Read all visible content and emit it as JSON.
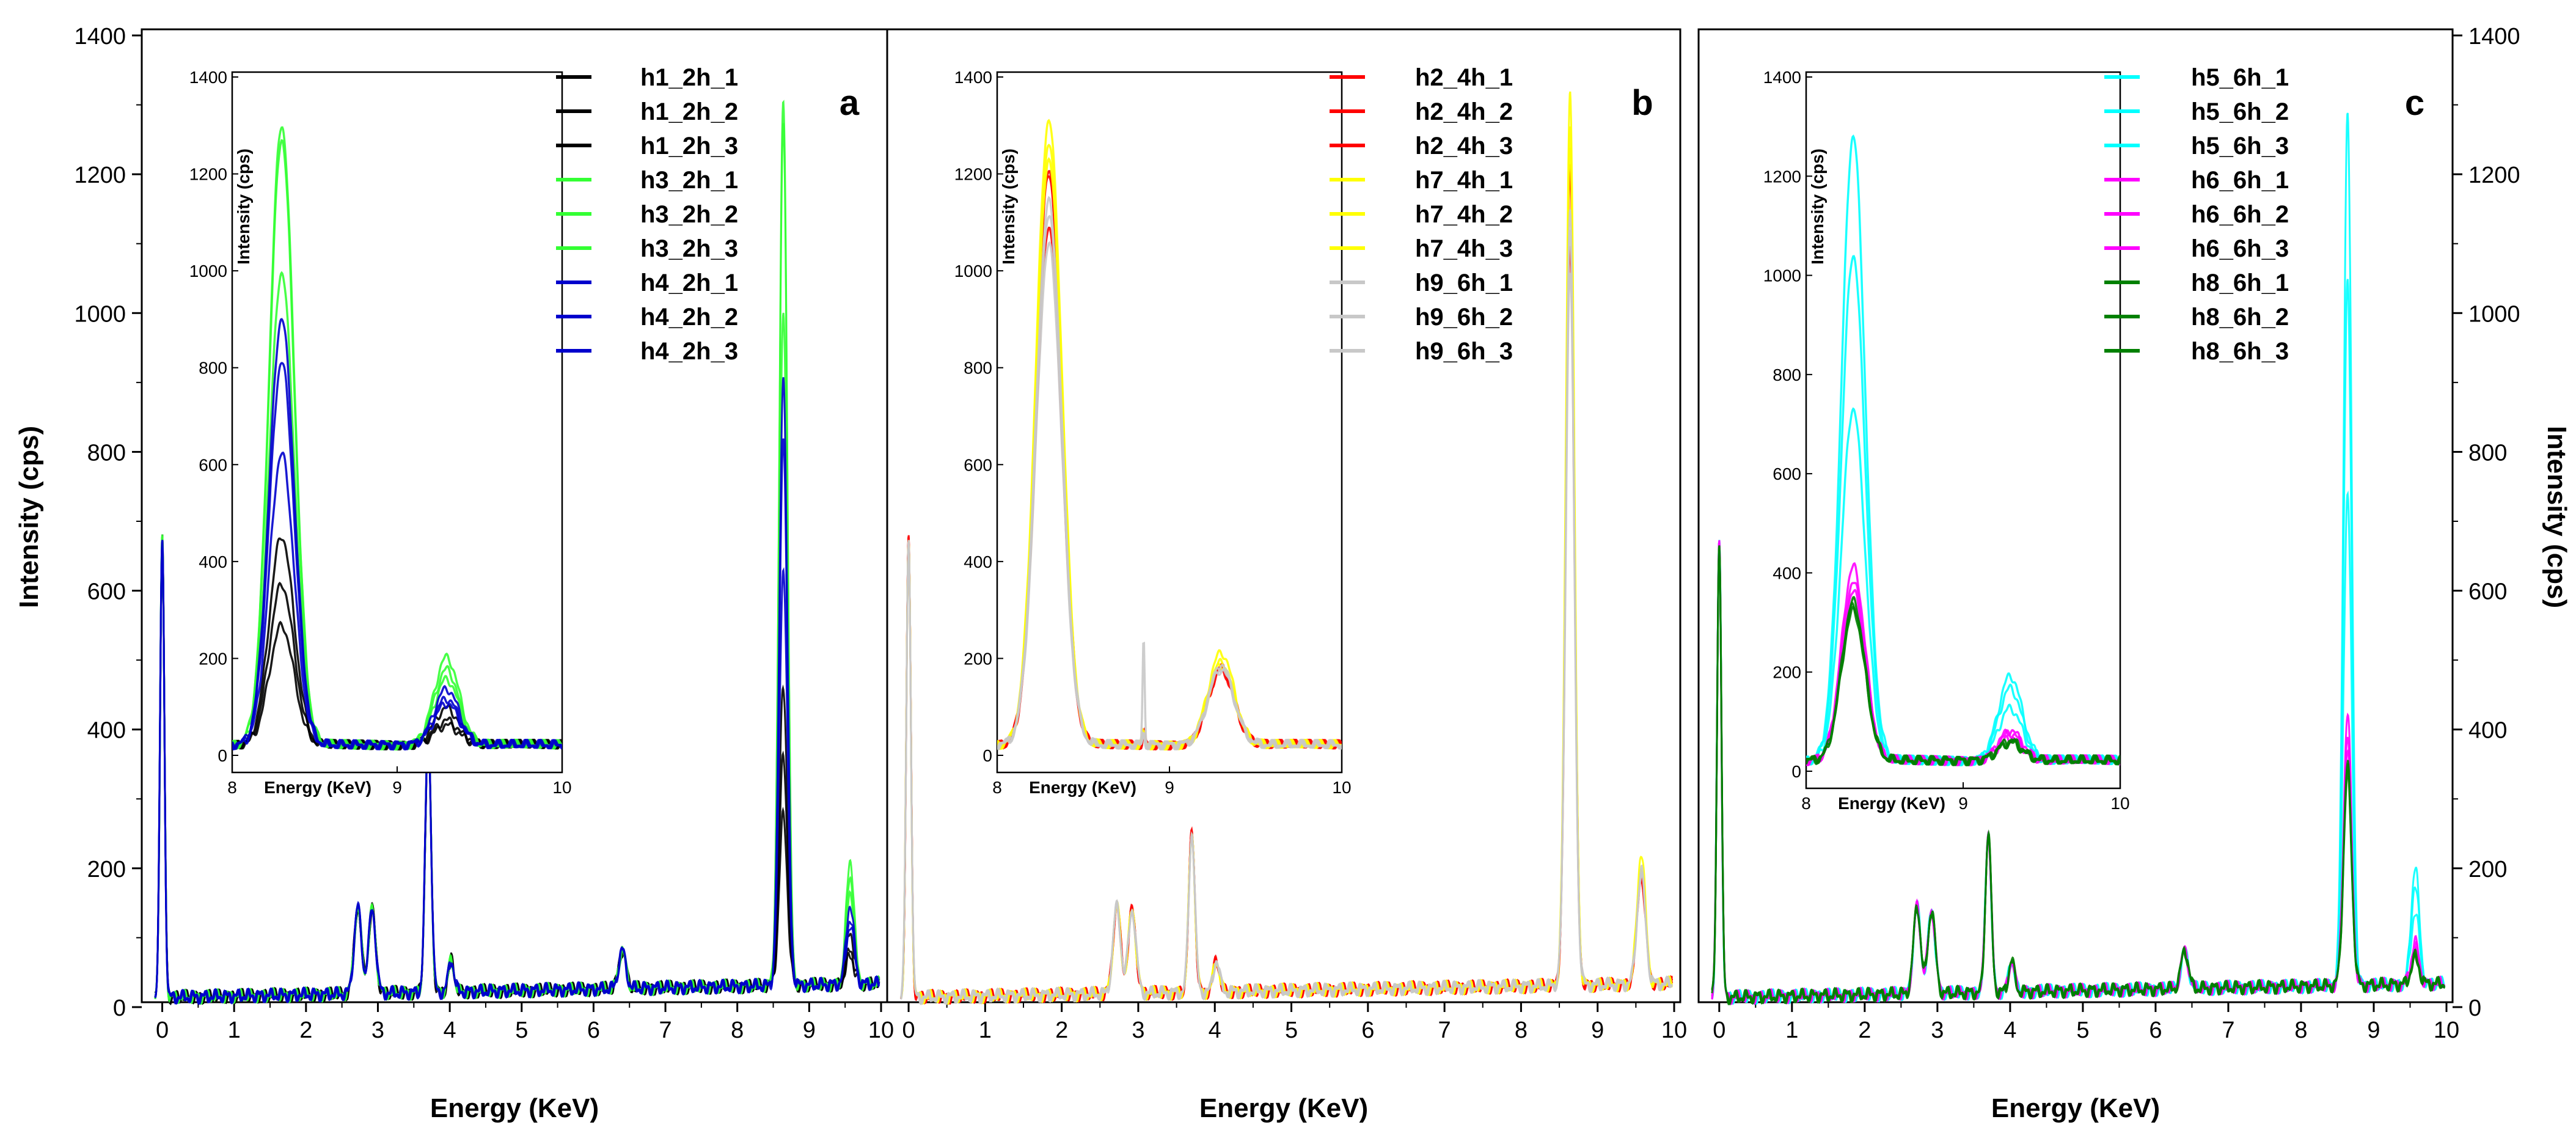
{
  "colors": {
    "h1": "#000000",
    "h2": "#ff0000",
    "h3": "#33ff33",
    "h4": "#0000cc",
    "h5": "#00ffff",
    "h6": "#ff00ff",
    "h7": "#ffff00",
    "h8": "#008000",
    "h9": "#c8c8c8"
  },
  "shared": {
    "xlabel": "Energy (KeV)",
    "ylabel": "Intensity (cps)",
    "xticks": [
      "0",
      "1",
      "2",
      "3",
      "4",
      "5",
      "6",
      "7",
      "8",
      "9",
      "10"
    ],
    "yticks": [
      "0",
      "200",
      "400",
      "600",
      "800",
      "1000",
      "1200",
      "1400"
    ],
    "inset_xlabel": "Energy (KeV)",
    "inset_ylabel": "Intensity (cps)",
    "inset_xticks": [
      "8",
      "9",
      "10"
    ],
    "inset_yticks": [
      "0",
      "200",
      "400",
      "600",
      "800",
      "1000",
      "1200",
      "1400"
    ]
  },
  "chart_data": [
    {
      "type": "line",
      "panel_label": "a",
      "xlim": [
        -0.2,
        10
      ],
      "ylim": [
        0,
        1400
      ],
      "inset": {
        "xlim": [
          8,
          10
        ],
        "ylim": [
          0,
          1400
        ]
      },
      "legend": [
        "h1_2h_1",
        "h1_2h_2",
        "h1_2h_3",
        "h3_2h_1",
        "h3_2h_2",
        "h3_2h_3",
        "h4_2h_1",
        "h4_2h_2",
        "h4_2h_3"
      ],
      "legend_position": "top-right",
      "peak_positions_kev": [
        0.0,
        2.7,
        2.9,
        3.7,
        4.0,
        6.4,
        8.64,
        9.57
      ],
      "series": [
        {
          "name": "h1_2h_1",
          "l_alpha_peak": 265,
          "l_beta_peak": 55
        },
        {
          "name": "h1_2h_2",
          "l_alpha_peak": 350,
          "l_beta_peak": 65
        },
        {
          "name": "h1_2h_3",
          "l_alpha_peak": 450,
          "l_beta_peak": 90
        },
        {
          "name": "h3_2h_1",
          "l_alpha_peak": 1300,
          "l_beta_peak": 170
        },
        {
          "name": "h3_2h_2",
          "l_alpha_peak": 1270,
          "l_beta_peak": 195
        },
        {
          "name": "h3_2h_3",
          "l_alpha_peak": 995,
          "l_beta_peak": 150
        },
        {
          "name": "h4_2h_1",
          "l_alpha_peak": 900,
          "l_beta_peak": 130
        },
        {
          "name": "h4_2h_2",
          "l_alpha_peak": 810,
          "l_beta_peak": 110
        },
        {
          "name": "h4_2h_3",
          "l_alpha_peak": 620,
          "l_beta_peak": 100
        }
      ]
    },
    {
      "type": "line",
      "panel_label": "b",
      "xlim": [
        -0.2,
        10
      ],
      "ylim": [
        0,
        1400
      ],
      "inset": {
        "xlim": [
          8,
          10
        ],
        "ylim": [
          0,
          1400
        ]
      },
      "legend": [
        "h2_4h_1",
        "h2_4h_2",
        "h2_4h_3",
        "h7_4h_1",
        "h7_4h_2",
        "h7_4h_3",
        "h9_6h_1",
        "h9_6h_2",
        "h9_6h_3"
      ],
      "legend_position": "top-right",
      "peak_positions_kev": [
        0.0,
        2.7,
        2.9,
        3.7,
        4.0,
        8.64,
        9.57
      ],
      "series": [
        {
          "name": "h2_4h_1",
          "l_alpha_peak": 1200,
          "l_beta_peak": 170
        },
        {
          "name": "h2_4h_2",
          "l_alpha_peak": 1210,
          "l_beta_peak": 175
        },
        {
          "name": "h2_4h_3",
          "l_alpha_peak": 1090,
          "l_beta_peak": 170
        },
        {
          "name": "h7_4h_1",
          "l_alpha_peak": 1230,
          "l_beta_peak": 185
        },
        {
          "name": "h7_4h_2",
          "l_alpha_peak": 1310,
          "l_beta_peak": 205
        },
        {
          "name": "h7_4h_3",
          "l_alpha_peak": 1260,
          "l_beta_peak": 180
        },
        {
          "name": "h9_6h_1",
          "l_alpha_peak": 1110,
          "l_beta_peak": 175
        },
        {
          "name": "h9_6h_2",
          "l_alpha_peak": 1050,
          "l_beta_peak": 170
        },
        {
          "name": "h9_6h_3",
          "l_alpha_peak": 1140,
          "l_beta_peak": 178
        }
      ]
    },
    {
      "type": "line",
      "panel_label": "c",
      "xlim": [
        -0.2,
        10
      ],
      "ylim": [
        0,
        1400
      ],
      "inset": {
        "xlim": [
          8,
          10
        ],
        "ylim": [
          0,
          1400
        ]
      },
      "legend": [
        "h5_6h_1",
        "h5_6h_2",
        "h5_6h_3",
        "h6_6h_1",
        "h6_6h_2",
        "h6_6h_3",
        "h8_6h_1",
        "h8_6h_2",
        "h8_6h_3"
      ],
      "legend_position": "top-right",
      "peak_positions_kev": [
        0.0,
        2.7,
        2.9,
        3.7,
        4.0,
        6.4,
        8.64,
        9.57
      ],
      "series": [
        {
          "name": "h5_6h_1",
          "l_alpha_peak": 1040,
          "l_beta_peak": 160
        },
        {
          "name": "h5_6h_2",
          "l_alpha_peak": 730,
          "l_beta_peak": 120
        },
        {
          "name": "h5_6h_3",
          "l_alpha_peak": 1280,
          "l_beta_peak": 185
        },
        {
          "name": "h6_6h_1",
          "l_alpha_peak": 380,
          "l_beta_peak": 70
        },
        {
          "name": "h6_6h_2",
          "l_alpha_peak": 360,
          "l_beta_peak": 60
        },
        {
          "name": "h6_6h_3",
          "l_alpha_peak": 410,
          "l_beta_peak": 75
        },
        {
          "name": "h8_6h_1",
          "l_alpha_peak": 340,
          "l_beta_peak": 55
        },
        {
          "name": "h8_6h_2",
          "l_alpha_peak": 320,
          "l_beta_peak": 50
        },
        {
          "name": "h8_6h_3",
          "l_alpha_peak": 330,
          "l_beta_peak": 52
        }
      ]
    }
  ]
}
